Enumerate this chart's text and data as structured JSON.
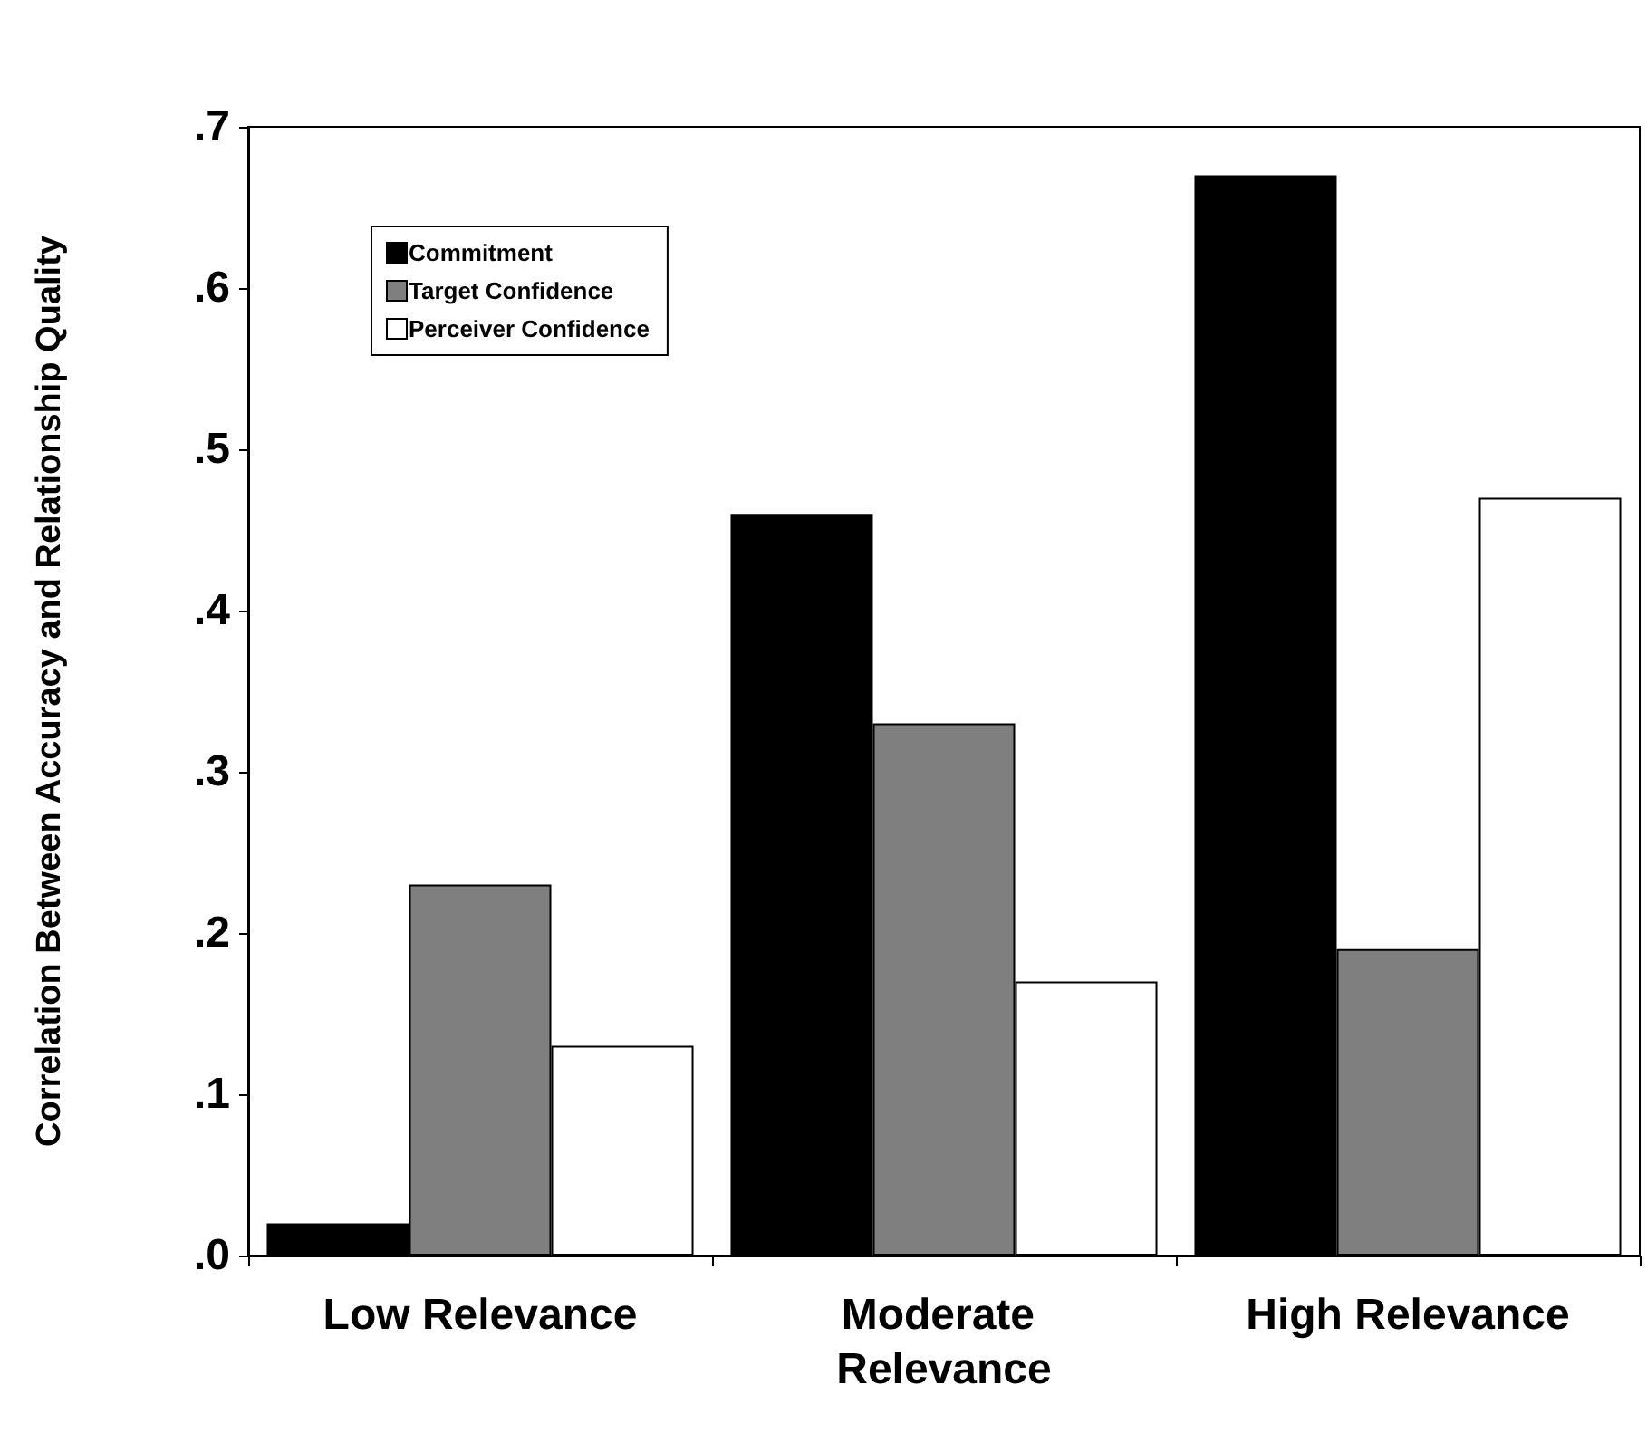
{
  "chart_data": {
    "type": "bar",
    "ylabel": "Correlation Between Accuracy and Relationship Quality",
    "categories": [
      "Low Relevance",
      "Moderate Relevance",
      "High Relevance"
    ],
    "series": [
      {
        "name": "Commitment",
        "color": "#000000",
        "values": [
          0.02,
          0.46,
          0.67
        ]
      },
      {
        "name": "Target Confidence",
        "color": "#7f7f7f",
        "values": [
          0.23,
          0.33,
          0.19
        ]
      },
      {
        "name": "Perceiver Confidence",
        "color": "#ffffff",
        "values": [
          0.13,
          0.17,
          0.47
        ]
      }
    ],
    "ylim": [
      0,
      0.7
    ],
    "yticks": [
      {
        "value": 0,
        "label": ".0"
      },
      {
        "value": 0.1,
        "label": ".1"
      },
      {
        "value": 0.2,
        "label": ".2"
      },
      {
        "value": 0.3,
        "label": ".3"
      },
      {
        "value": 0.4,
        "label": ".4"
      },
      {
        "value": 0.5,
        "label": ".5"
      },
      {
        "value": 0.6,
        "label": ".6"
      },
      {
        "value": 0.7,
        "label": ".7"
      }
    ],
    "legend": "top left"
  }
}
